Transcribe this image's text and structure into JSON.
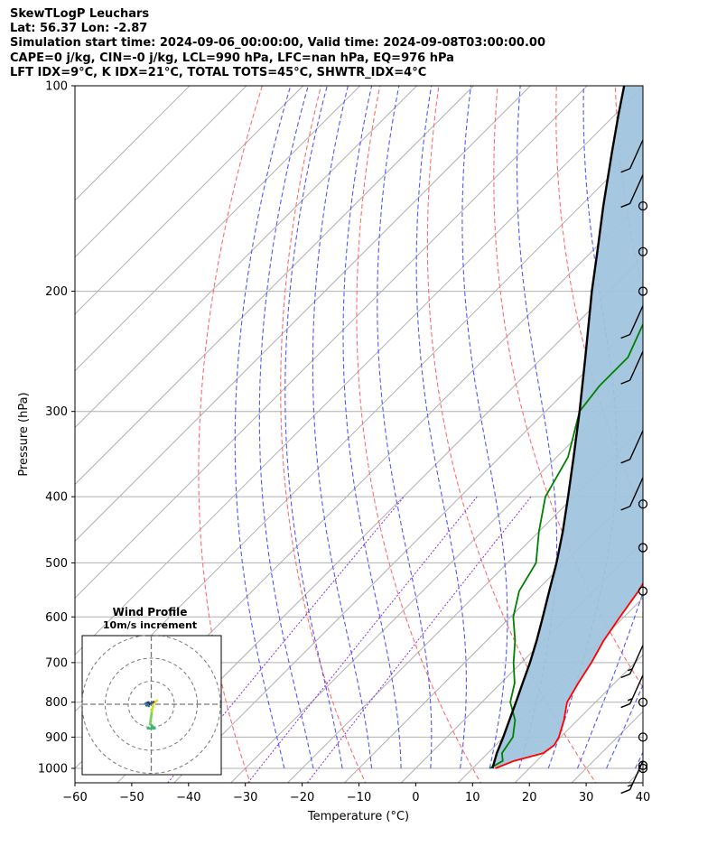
{
  "header": {
    "title": "SkewTLogP Leuchars",
    "location": "Lat: 56.37   Lon: -2.87",
    "simulation": "Simulation start time: 2024-09-06_00:00:00, Valid time: 2024-09-08T03:00:00.00",
    "indices_1": "CAPE=0 j/kg, CIN=-0 j/kg, LCL=990 hPa, LFC=nan hPa, EQ=976 hPa",
    "indices_2": "LFT IDX=9°C, K IDX=21°C, TOTAL TOTS=45°C, SHWTR_IDX=4°C"
  },
  "chart_data": {
    "type": "line",
    "subtype": "skew-t log-p",
    "xlabel": "Temperature (°C)",
    "ylabel": "Pressure (hPa)",
    "xlim": [
      -60,
      40
    ],
    "ylim": [
      1050,
      100
    ],
    "x_ticks": [
      -60,
      -50,
      -40,
      -30,
      -20,
      -10,
      0,
      10,
      20,
      30,
      40
    ],
    "x_tick_labels": [
      "−60",
      "−50",
      "−40",
      "−30",
      "−20",
      "−10",
      "0",
      "10",
      "20",
      "30",
      "40"
    ],
    "y_ticks": [
      1000,
      900,
      800,
      700,
      600,
      500,
      400,
      300,
      200,
      100
    ],
    "y_scale": "log",
    "grid": true,
    "series": [
      {
        "id": "temperature",
        "color": "#ff0000",
        "points": [
          [
            1000,
            14.0
          ],
          [
            975,
            16.0
          ],
          [
            950,
            19.8
          ],
          [
            925,
            20.3
          ],
          [
            900,
            19.7
          ],
          [
            850,
            17.6
          ],
          [
            800,
            15.0
          ],
          [
            750,
            13.6
          ],
          [
            700,
            12.3
          ],
          [
            650,
            10.6
          ],
          [
            600,
            9.3
          ],
          [
            550,
            8.0
          ],
          [
            500,
            6.0
          ],
          [
            450,
            4.0
          ],
          [
            400,
            1.7
          ],
          [
            350,
            -1.9
          ],
          [
            300,
            -6.2
          ],
          [
            275,
            -9.2
          ],
          [
            250,
            -12.8
          ],
          [
            225,
            -17.8
          ],
          [
            200,
            -20.3
          ],
          [
            175,
            -23.3
          ],
          [
            150,
            -27.0
          ],
          [
            125,
            -32.0
          ],
          [
            110,
            -36.5
          ],
          [
            100,
            -40.0
          ]
        ]
      },
      {
        "id": "dewpoint",
        "color": "#008000",
        "points": [
          [
            1000,
            13.0
          ],
          [
            975,
            14.0
          ],
          [
            950,
            12.5
          ],
          [
            900,
            11.6
          ],
          [
            850,
            9.0
          ],
          [
            800,
            5.0
          ],
          [
            750,
            2.4
          ],
          [
            700,
            -1.4
          ],
          [
            650,
            -5.0
          ],
          [
            600,
            -9.5
          ],
          [
            550,
            -13.0
          ],
          [
            500,
            -15.0
          ],
          [
            450,
            -20.0
          ],
          [
            400,
            -25.0
          ],
          [
            350,
            -28.0
          ],
          [
            300,
            -34.0
          ],
          [
            275,
            -35.0
          ],
          [
            250,
            -35.0
          ],
          [
            225,
            -38.0
          ],
          [
            200,
            -41.0
          ],
          [
            185,
            -43.0
          ],
          [
            170,
            -50.0
          ],
          [
            160,
            -55.0
          ],
          [
            150,
            -57.0
          ],
          [
            130,
            -58.0
          ],
          [
            115,
            -60.0
          ],
          [
            100,
            -63.0
          ]
        ]
      },
      {
        "id": "parcel",
        "color": "#000000",
        "points": [
          [
            1000,
            13.5
          ],
          [
            950,
            11.6
          ],
          [
            900,
            9.9
          ],
          [
            850,
            8.0
          ],
          [
            800,
            6.0
          ],
          [
            750,
            3.8
          ],
          [
            700,
            1.5
          ],
          [
            650,
            -1.2
          ],
          [
            600,
            -4.3
          ],
          [
            550,
            -7.7
          ],
          [
            500,
            -11.4
          ],
          [
            450,
            -15.8
          ],
          [
            400,
            -21.0
          ],
          [
            350,
            -27.0
          ],
          [
            300,
            -34.0
          ],
          [
            250,
            -42.5
          ],
          [
            200,
            -53.0
          ],
          [
            175,
            -59.0
          ],
          [
            150,
            -66.0
          ],
          [
            125,
            -74.0
          ],
          [
            110,
            -79.5
          ],
          [
            100,
            -83.5
          ]
        ]
      }
    ],
    "shading": {
      "between": [
        "temperature",
        "parcel"
      ],
      "color": "#a0c4dd"
    },
    "wind_barbs": [
      {
        "p": 1000,
        "speed": "calm"
      },
      {
        "p": 990,
        "speed": "calm"
      },
      {
        "p": 975,
        "speed": 15
      },
      {
        "p": 900,
        "speed": "calm"
      },
      {
        "p": 800,
        "speed": "calm"
      },
      {
        "p": 730,
        "speed": 15
      },
      {
        "p": 660,
        "speed": 15
      },
      {
        "p": 550,
        "speed": "calm"
      },
      {
        "p": 475,
        "speed": "calm"
      },
      {
        "p": 410,
        "speed": "calm"
      },
      {
        "p": 375,
        "speed": 10
      },
      {
        "p": 320,
        "speed": 10
      },
      {
        "p": 245,
        "speed": 10
      },
      {
        "p": 210,
        "speed": 10
      },
      {
        "p": 200,
        "speed": "calm"
      },
      {
        "p": 175,
        "speed": "calm"
      },
      {
        "p": 150,
        "speed": "calm"
      },
      {
        "p": 135,
        "speed": 10
      },
      {
        "p": 120,
        "speed": 10
      }
    ],
    "hodograph": {
      "title": "Wind Profile",
      "subtitle": "10m/s increment",
      "rings_ms": [
        10,
        20,
        30
      ],
      "path": [
        {
          "u": -1.5,
          "v": -10.5,
          "color": "#3cba72"
        },
        {
          "u": 1.5,
          "v": -10.5,
          "color": "#3cba72"
        },
        {
          "u": -0.5,
          "v": -8.5,
          "color": "#3cba72"
        },
        {
          "u": 0.3,
          "v": -3.0,
          "color": "#7ad151"
        },
        {
          "u": 1.0,
          "v": 0.5,
          "color": "#c8e020"
        },
        {
          "u": 2.5,
          "v": 1.5,
          "color": "#fde725"
        },
        {
          "u": 1.0,
          "v": 1.0,
          "color": "#e6dc28"
        },
        {
          "u": -1.0,
          "v": 0.0,
          "color": "#3b528b"
        },
        {
          "u": -2.0,
          "v": -0.5,
          "color": "#440154"
        },
        {
          "u": -1.2,
          "v": 0.8,
          "color": "#31688e"
        },
        {
          "u": -2.5,
          "v": 0.3,
          "color": "#482878"
        },
        {
          "u": -1.0,
          "v": -0.8,
          "color": "#26828e"
        }
      ]
    }
  }
}
